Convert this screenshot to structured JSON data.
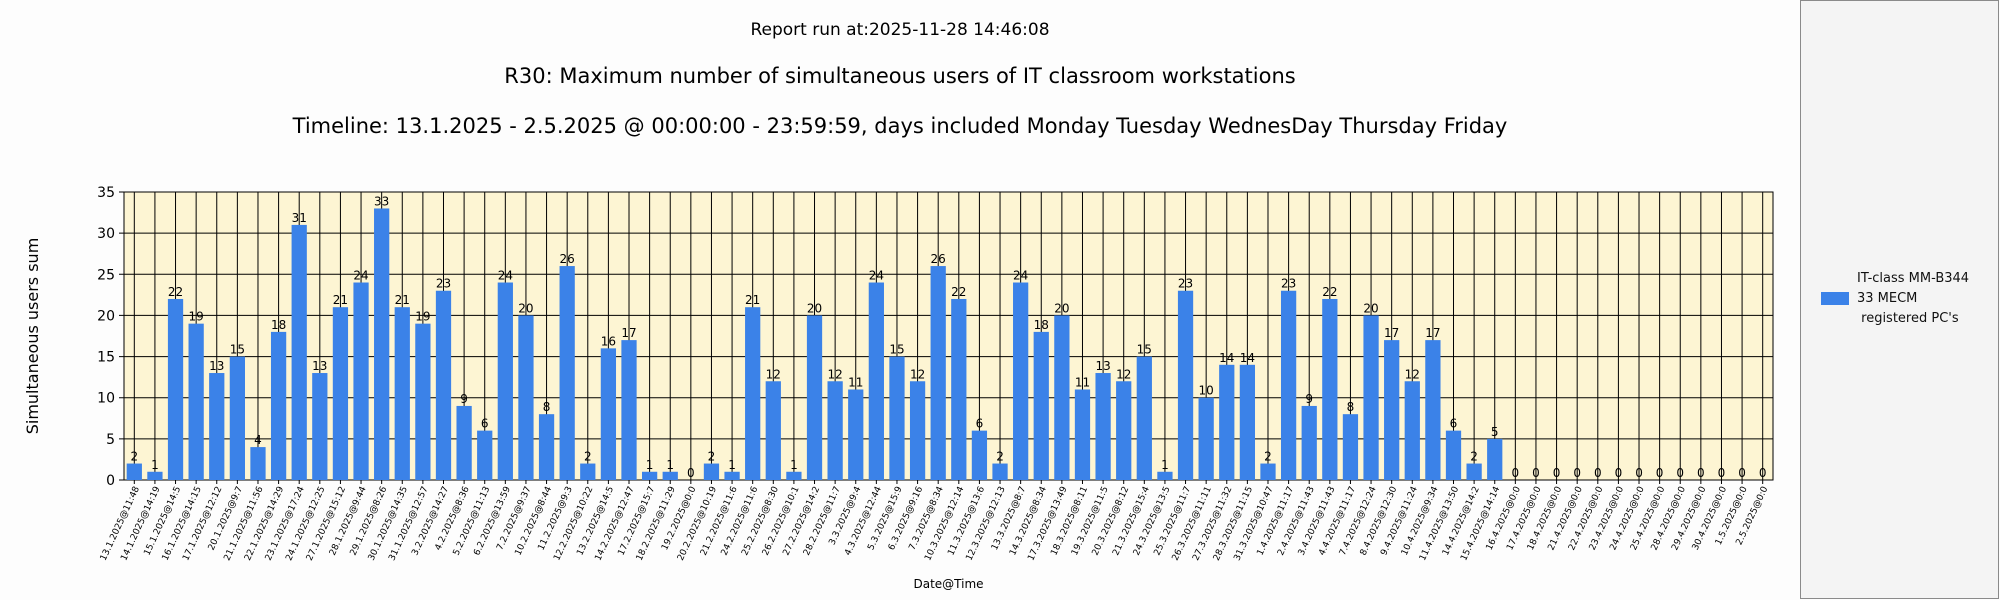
{
  "header": {
    "run_line": "Report run at:2025-11-28 14:46:08",
    "title": "R30: Maximum number of simultaneous users of IT classroom workstations",
    "timeline": "Timeline: 13.1.2025  - 2.5.2025  @  00:00:00 -  23:59:59, days included Monday Tuesday WednesDay Thursday Friday"
  },
  "legend": {
    "entries": [
      {
        "label": "IT-class MM-B344\n33 MECM\n registered PC's",
        "color": "#3b82e8"
      }
    ]
  },
  "chart_data": {
    "type": "bar",
    "title": "R30: Maximum number of simultaneous users of IT classroom workstations",
    "xlabel": "Date@Time",
    "ylabel": "Simultaneous users sum",
    "ylim": [
      0,
      35
    ],
    "yticks": [
      0,
      5,
      10,
      15,
      20,
      25,
      30,
      35
    ],
    "grid": true,
    "legend_position": "right",
    "plot_background": "#fdf5d3",
    "bar_color": "#3b82e8",
    "categories": [
      "13.1.2025@11:48",
      "14.1.2025@14:19",
      "15.1.2025@14:5",
      "16.1.2025@14:15",
      "17.1.2025@12:12",
      "20.1.2025@9:7",
      "21.1.2025@11:56",
      "22.1.2025@14:29",
      "23.1.2025@17:24",
      "24.1.2025@12:25",
      "27.1.2025@15:12",
      "28.1.2025@9:44",
      "29.1.2025@8:26",
      "30.1.2025@14:35",
      "31.1.2025@12:57",
      "3.2.2025@14:27",
      "4.2.2025@8:36",
      "5.2.2025@11:13",
      "6.2.2025@13:59",
      "7.2.2025@9:37",
      "10.2.2025@8:44",
      "11.2.2025@9:3",
      "12.2.2025@10:22",
      "13.2.2025@14:5",
      "14.2.2025@12:47",
      "17.2.2025@15:7",
      "18.2.2025@11:29",
      "19.2.2025@0:0",
      "20.2.2025@10:19",
      "21.2.2025@11:6",
      "24.2.2025@11:6",
      "25.2.2025@8:30",
      "26.2.2025@10:1",
      "27.2.2025@14:2",
      "28.2.2025@11:7",
      "3.3.2025@9:4",
      "4.3.2025@12:44",
      "5.3.2025@15:9",
      "6.3.2025@9:16",
      "7.3.2025@8:34",
      "10.3.2025@12:14",
      "11.3.2025@13:6",
      "12.3.2025@12:13",
      "13.3.2025@8:7",
      "14.3.2025@8:34",
      "17.3.2025@13:49",
      "18.3.2025@8:11",
      "19.3.2025@11:5",
      "20.3.2025@8:12",
      "21.3.2025@15:4",
      "24.3.2025@13:5",
      "25.3.2025@11:7",
      "26.3.2025@11:11",
      "27.3.2025@11:32",
      "28.3.2025@11:15",
      "31.3.2025@10:47",
      "1.4.2025@11:17",
      "2.4.2025@11:43",
      "3.4.2025@11:43",
      "4.4.2025@11:17",
      "7.4.2025@12:24",
      "8.4.2025@12:30",
      "9.4.2025@11:24",
      "10.4.2025@9:34",
      "11.4.2025@13:50",
      "14.4.2025@14:2",
      "15.4.2025@14:14",
      "16.4.2025@0:0",
      "17.4.2025@0:0",
      "18.4.2025@0:0",
      "21.4.2025@0:0",
      "22.4.2025@0:0",
      "23.4.2025@0:0",
      "24.4.2025@0:0",
      "25.4.2025@0:0",
      "28.4.2025@0:0",
      "29.4.2025@0:0",
      "30.4.2025@0:0",
      "1.5.2025@0:0",
      "2.5.2025@0:0"
    ],
    "values": [
      2,
      1,
      22,
      19,
      13,
      15,
      4,
      18,
      31,
      13,
      21,
      24,
      33,
      21,
      19,
      23,
      9,
      6,
      24,
      20,
      8,
      26,
      2,
      16,
      17,
      1,
      1,
      0,
      2,
      1,
      21,
      12,
      1,
      20,
      12,
      11,
      24,
      15,
      12,
      26,
      22,
      6,
      2,
      24,
      18,
      20,
      11,
      13,
      12,
      15,
      1,
      23,
      10,
      14,
      14,
      2,
      23,
      9,
      22,
      8,
      20,
      17,
      12,
      17,
      6,
      2,
      5,
      0,
      0,
      0,
      0,
      0,
      0,
      0,
      0,
      0,
      0,
      0,
      0,
      0
    ]
  }
}
